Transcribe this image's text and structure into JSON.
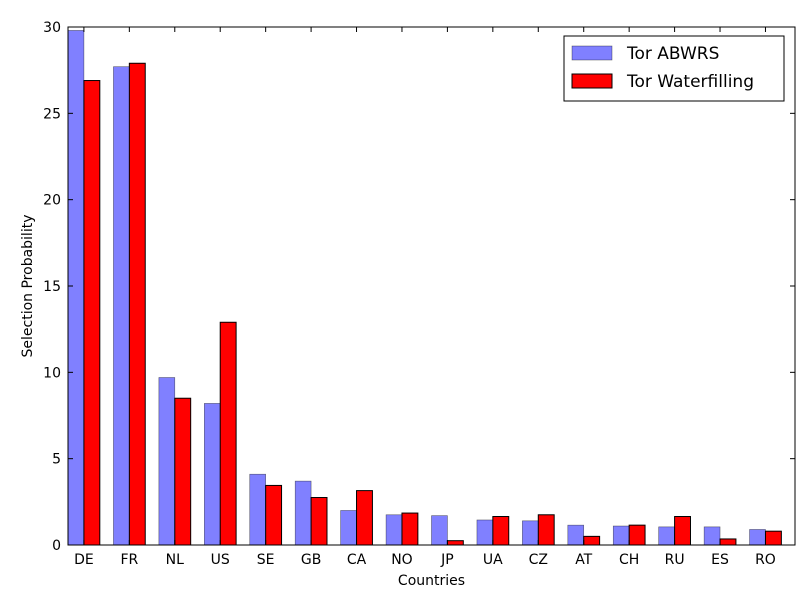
{
  "chart_data": {
    "type": "bar",
    "title": "",
    "xlabel": "Countries",
    "ylabel": "Selection Probability",
    "ylim": [
      0,
      30
    ],
    "yticks": [
      0,
      5,
      10,
      15,
      20,
      25,
      30
    ],
    "grid": false,
    "legend_position": "top-right",
    "categories": [
      "DE",
      "FR",
      "NL",
      "US",
      "SE",
      "GB",
      "CA",
      "NO",
      "JP",
      "UA",
      "CZ",
      "AT",
      "CH",
      "RU",
      "ES",
      "RO"
    ],
    "series": [
      {
        "name": "Tor ABWRS",
        "color": "#8080ff",
        "values": [
          29.8,
          27.7,
          9.7,
          8.2,
          4.1,
          3.7,
          2.0,
          1.75,
          1.7,
          1.45,
          1.4,
          1.15,
          1.1,
          1.05,
          1.05,
          0.9
        ]
      },
      {
        "name": "Tor Waterfilling",
        "color": "#ff0000",
        "values": [
          26.9,
          27.9,
          8.5,
          12.9,
          3.45,
          2.75,
          3.15,
          1.85,
          0.25,
          1.65,
          1.75,
          0.5,
          1.15,
          1.65,
          0.35,
          0.8
        ]
      }
    ]
  }
}
